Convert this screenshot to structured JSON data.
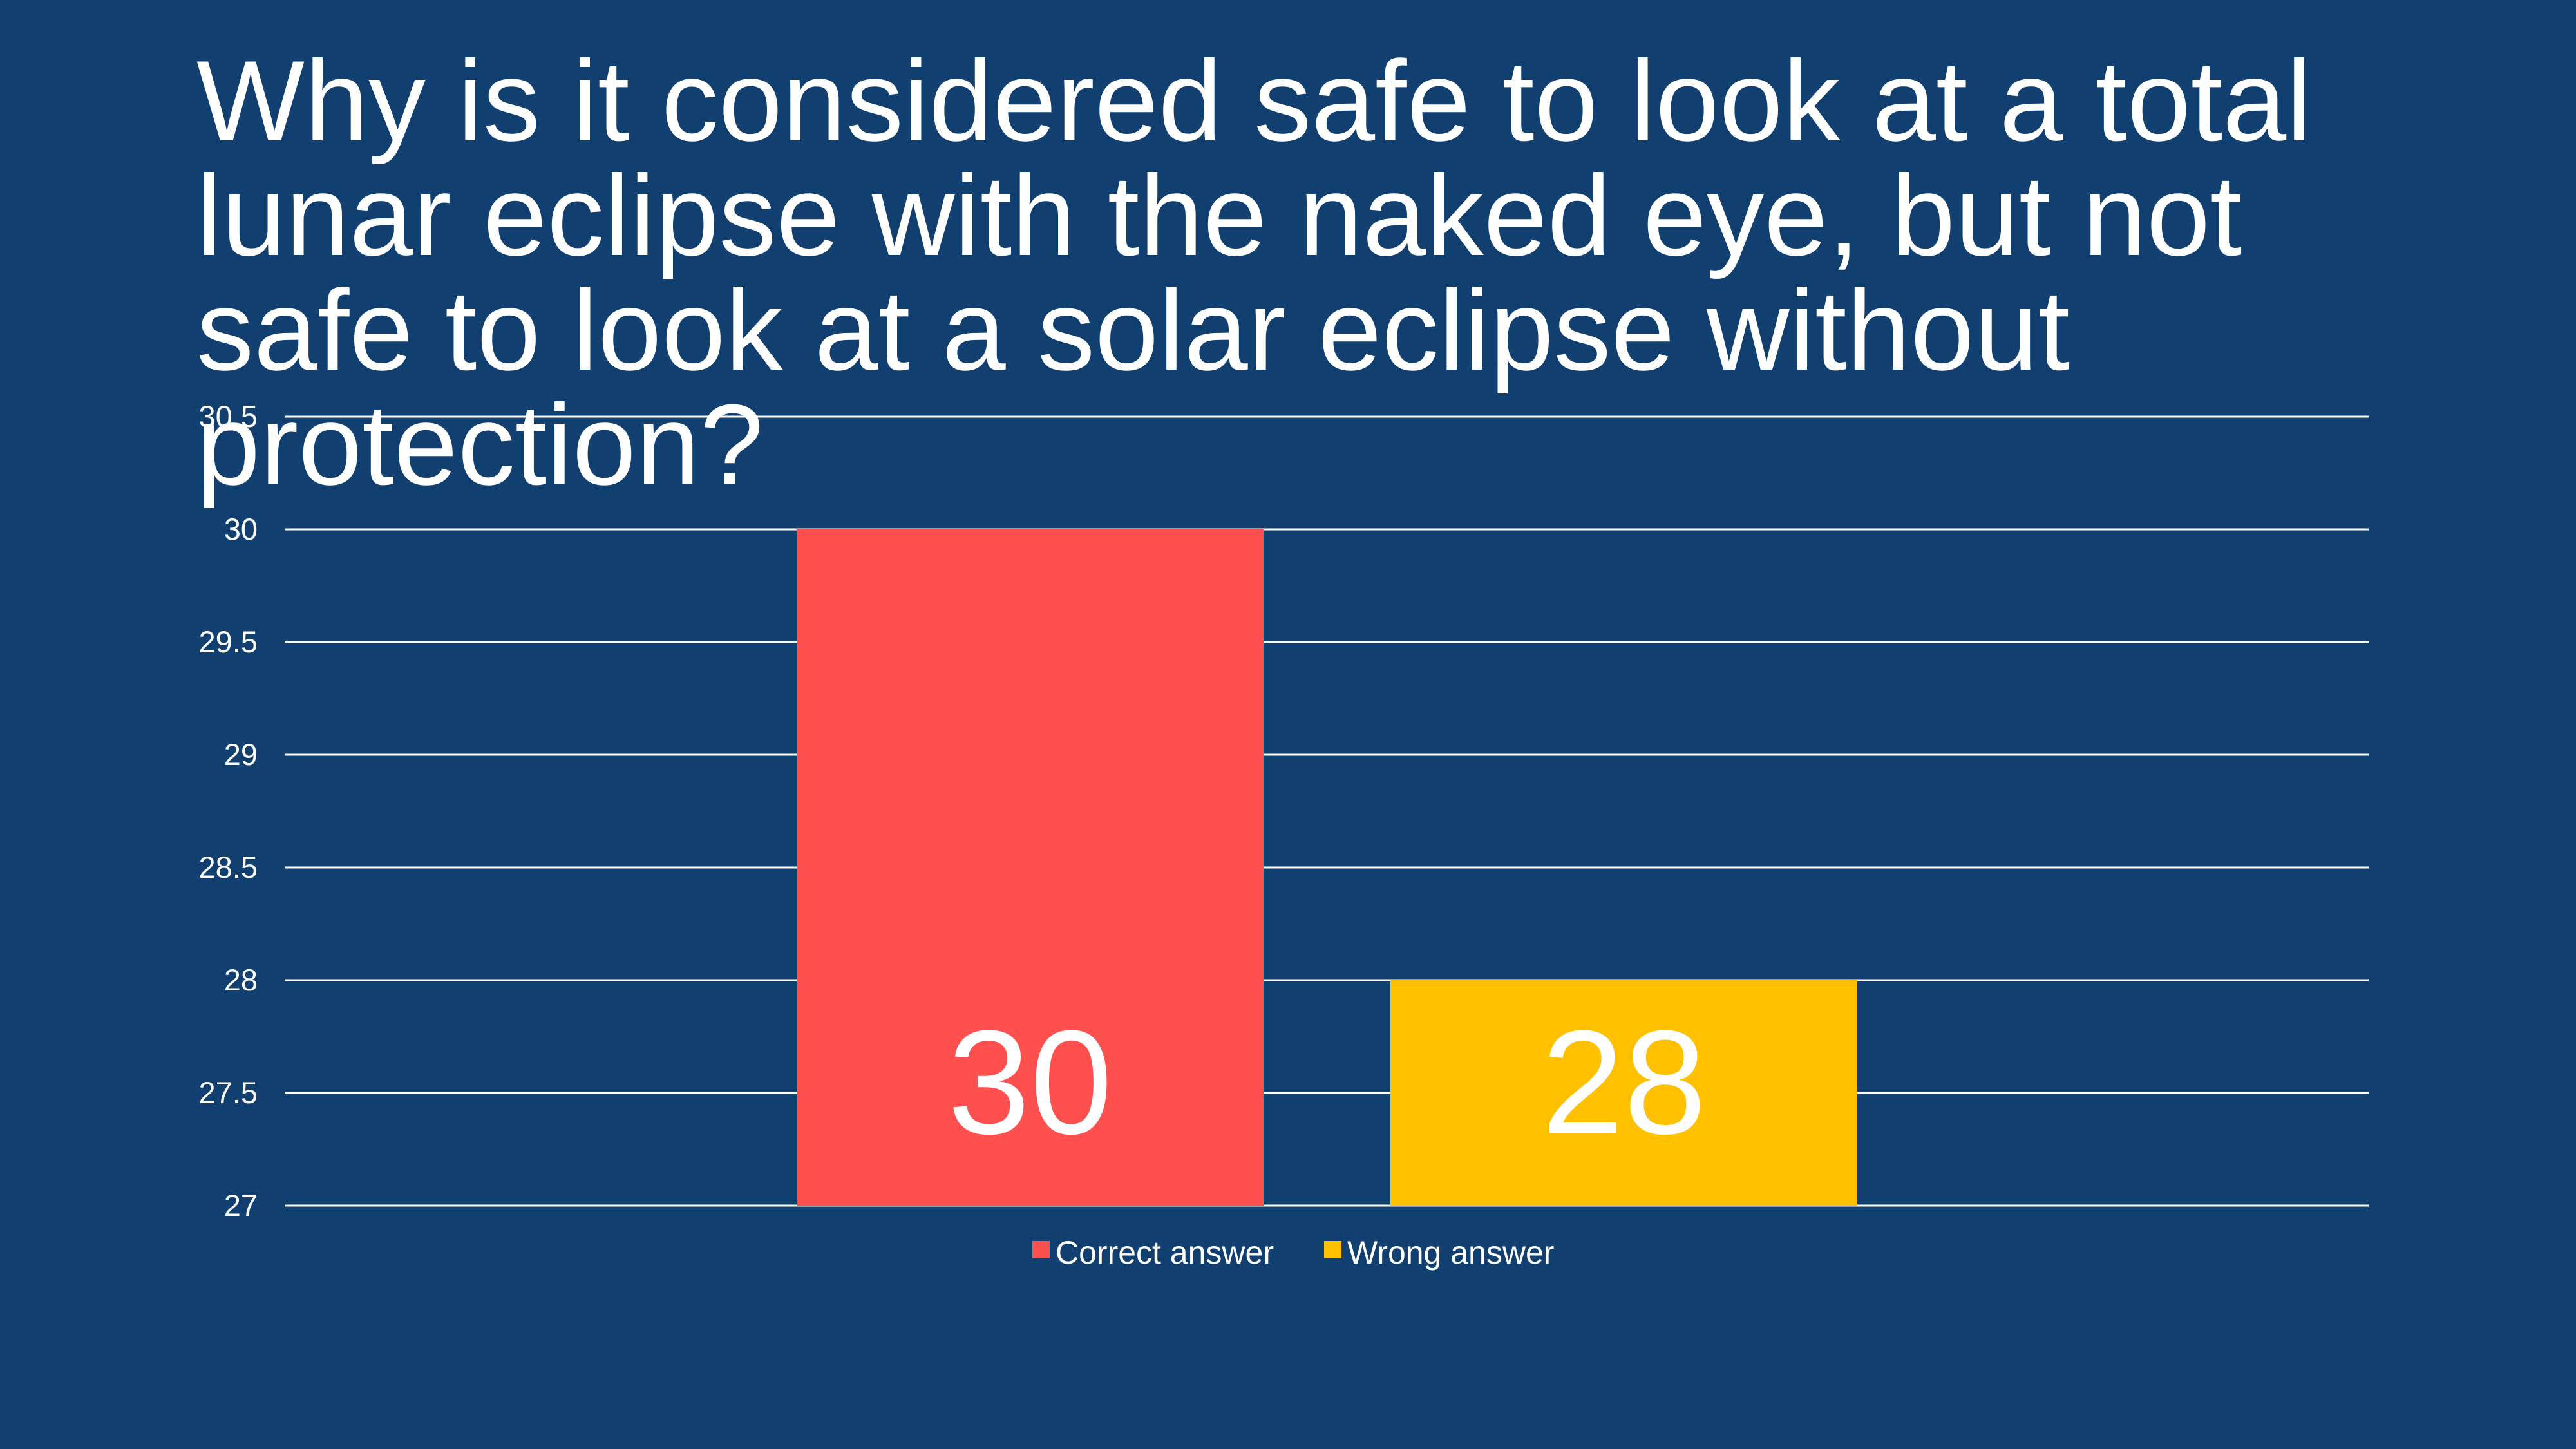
{
  "slide": {
    "background_color": "#114070"
  },
  "chart_data": {
    "type": "bar",
    "title": "Why is it considered safe to look at a total lunar eclipse with the naked eye, but not safe to look at a solar eclipse without protection?",
    "xlabel": "",
    "ylabel": "",
    "ylim": [
      27,
      30.5
    ],
    "yticks": [
      "27",
      "27.5",
      "28",
      "28.5",
      "29",
      "29.5",
      "30",
      "30.5"
    ],
    "grid": true,
    "legend_position": "bottom",
    "series": [
      {
        "name": "Correct answer",
        "value": 30,
        "label": "30",
        "color": "#FF5050"
      },
      {
        "name": "Wrong answer",
        "value": 28,
        "label": "28",
        "color": "#FFC000"
      }
    ],
    "gridline_color": "#ffffff"
  }
}
